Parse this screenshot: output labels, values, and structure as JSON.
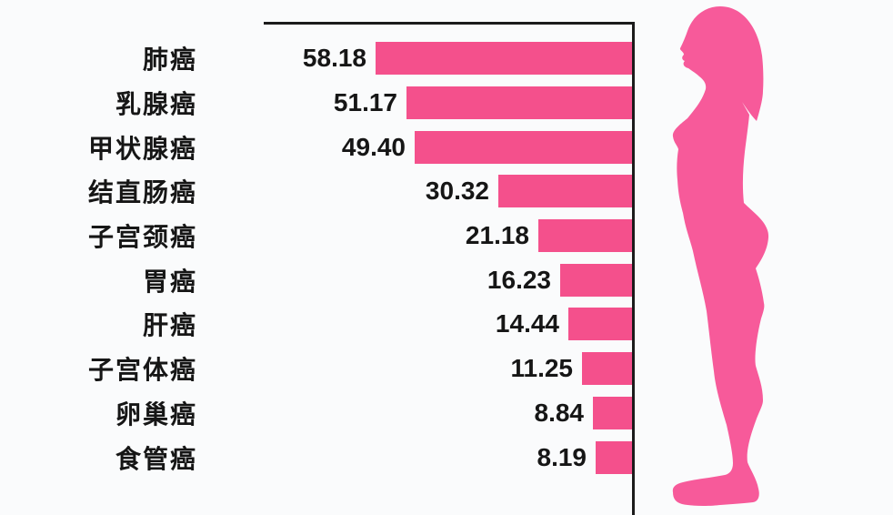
{
  "chart_data": {
    "type": "bar",
    "orientation": "horizontal",
    "bars_right_aligned": true,
    "title": "",
    "xlabel": "",
    "ylabel": "",
    "categories": [
      "肺癌",
      "乳腺癌",
      "甲状腺癌",
      "结直肠癌",
      "子宫颈癌",
      "胃癌",
      "肝癌",
      "子宫体癌",
      "卵巢癌",
      "食管癌"
    ],
    "values": [
      58.18,
      51.17,
      49.4,
      30.32,
      21.18,
      16.23,
      14.44,
      11.25,
      8.84,
      8.19
    ],
    "value_labels": [
      "58.18",
      "51.17",
      "49.40",
      "30.32",
      "21.18",
      "16.23",
      "14.44",
      "11.25",
      "8.84",
      "8.19"
    ],
    "xlim": [
      0,
      58.18
    ],
    "grid": false,
    "legend": false,
    "bar_color": "#f4508c",
    "axis_color": "#1b1b1b",
    "text_color": "#161616"
  },
  "figure": {
    "name": "woman-profile-silhouette",
    "color": "#f75a9a"
  },
  "background_color": "#fafbfc"
}
